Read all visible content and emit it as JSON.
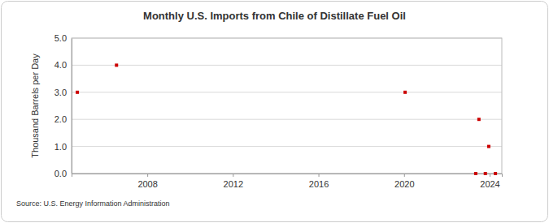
{
  "chart_data": {
    "type": "scatter",
    "title": "Monthly U.S. Imports from Chile of Distillate Fuel Oil",
    "y_label": "Thousand Barrels per Day",
    "source": "Source: U.S. Energy Information Administration",
    "x": [
      2004.73,
      2006.56,
      2020.05,
      2023.35,
      2023.5,
      2023.8,
      2023.96,
      2024.27
    ],
    "values": [
      3,
      4,
      3,
      0,
      2,
      0,
      1,
      0
    ],
    "color": "#cc0000",
    "marker": "square",
    "xlim": [
      2004.46,
      2024.57
    ],
    "xticks": [
      2008,
      2012,
      2016,
      2020,
      2024
    ],
    "ylim": [
      0,
      5
    ],
    "yticks": [
      {
        "value": 0,
        "label": "0.0"
      },
      {
        "value": 1,
        "label": "1.0"
      },
      {
        "value": 2,
        "label": "2.0"
      },
      {
        "value": 3,
        "label": "3.0"
      },
      {
        "value": 4,
        "label": "4.0"
      },
      {
        "value": 5,
        "label": "5.0"
      }
    ],
    "grid": true
  }
}
